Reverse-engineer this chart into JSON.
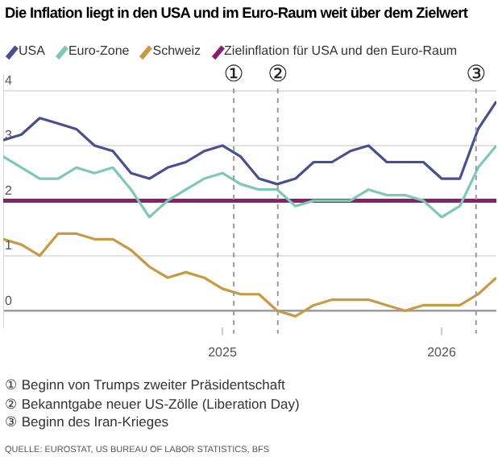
{
  "chart_data": {
    "type": "line",
    "title": "Die Inflation liegt in den USA und im Euro-Raum weit über dem Zielwert",
    "x": [
      "2024-01",
      "2024-02",
      "2024-03",
      "2024-04",
      "2024-05",
      "2024-06",
      "2024-07",
      "2024-08",
      "2024-09",
      "2024-10",
      "2024-11",
      "2024-12",
      "2025-01",
      "2025-02",
      "2025-03",
      "2025-04",
      "2025-05",
      "2025-06",
      "2025-07",
      "2025-08",
      "2025-09",
      "2025-10",
      "2025-11",
      "2025-12",
      "2026-01",
      "2026-02",
      "2026-03",
      "2026-04"
    ],
    "series": [
      {
        "name": "USA",
        "color": "#4b4f8f",
        "values": [
          3.1,
          3.2,
          3.5,
          3.4,
          3.3,
          3.0,
          2.9,
          2.5,
          2.4,
          2.6,
          2.7,
          2.9,
          3.0,
          2.8,
          2.4,
          2.3,
          2.4,
          2.7,
          2.7,
          2.9,
          3.0,
          2.7,
          2.7,
          2.7,
          2.4,
          2.4,
          3.3,
          3.8
        ]
      },
      {
        "name": "Euro-Zone",
        "color": "#7fc8b5",
        "values": [
          2.8,
          2.6,
          2.4,
          2.4,
          2.6,
          2.5,
          2.6,
          2.2,
          1.7,
          2.0,
          2.2,
          2.4,
          2.5,
          2.3,
          2.2,
          2.2,
          1.9,
          2.0,
          2.0,
          2.0,
          2.2,
          2.1,
          2.1,
          2.0,
          1.7,
          1.9,
          2.6,
          3.0
        ]
      },
      {
        "name": "Schweiz",
        "color": "#c99a45",
        "values": [
          1.3,
          1.2,
          1.0,
          1.4,
          1.4,
          1.3,
          1.3,
          1.1,
          0.8,
          0.6,
          0.7,
          0.6,
          0.4,
          0.3,
          0.3,
          0.0,
          -0.1,
          0.1,
          0.2,
          0.2,
          0.2,
          0.1,
          0.0,
          0.1,
          0.1,
          0.1,
          0.3,
          0.6
        ]
      },
      {
        "name": "Zielinflation für USA und den Euro-Raum",
        "color": "#8a1f6b",
        "x": [
          "2024-01",
          "2026-04"
        ],
        "values": [
          2,
          2
        ]
      }
    ],
    "ylim": [
      -0.3,
      4.3
    ],
    "yticks": [
      0,
      1,
      2,
      3,
      4
    ],
    "xlim": [
      "2024-01",
      "2026-04"
    ],
    "xticks": [
      "2025",
      "2026"
    ],
    "grid": "y",
    "legend": "top",
    "marker": "none",
    "line_style": "solid",
    "ref_lines": [
      {
        "axis": "x",
        "value": "2025-01-20",
        "label": "①",
        "color": "#9a9a9a",
        "line_style": "dashed"
      },
      {
        "axis": "x",
        "value": "2025-04-02",
        "label": "②",
        "color": "#9a9a9a",
        "line_style": "dashed"
      },
      {
        "axis": "x",
        "value": "2026-02-28",
        "label": "③",
        "color": "#9a9a9a",
        "line_style": "dashed"
      }
    ],
    "annotations": [
      "① Beginn von Trumps zweiter Präsidentschaft",
      "② Bekanntgabe neuer US-Zölle (Liberation Day)",
      "③ Beginn des Iran-Krieges",
      "QUELLE: EUROSTAT, US BUREAU OF LABOR STATISTICS, BFS"
    ]
  }
}
